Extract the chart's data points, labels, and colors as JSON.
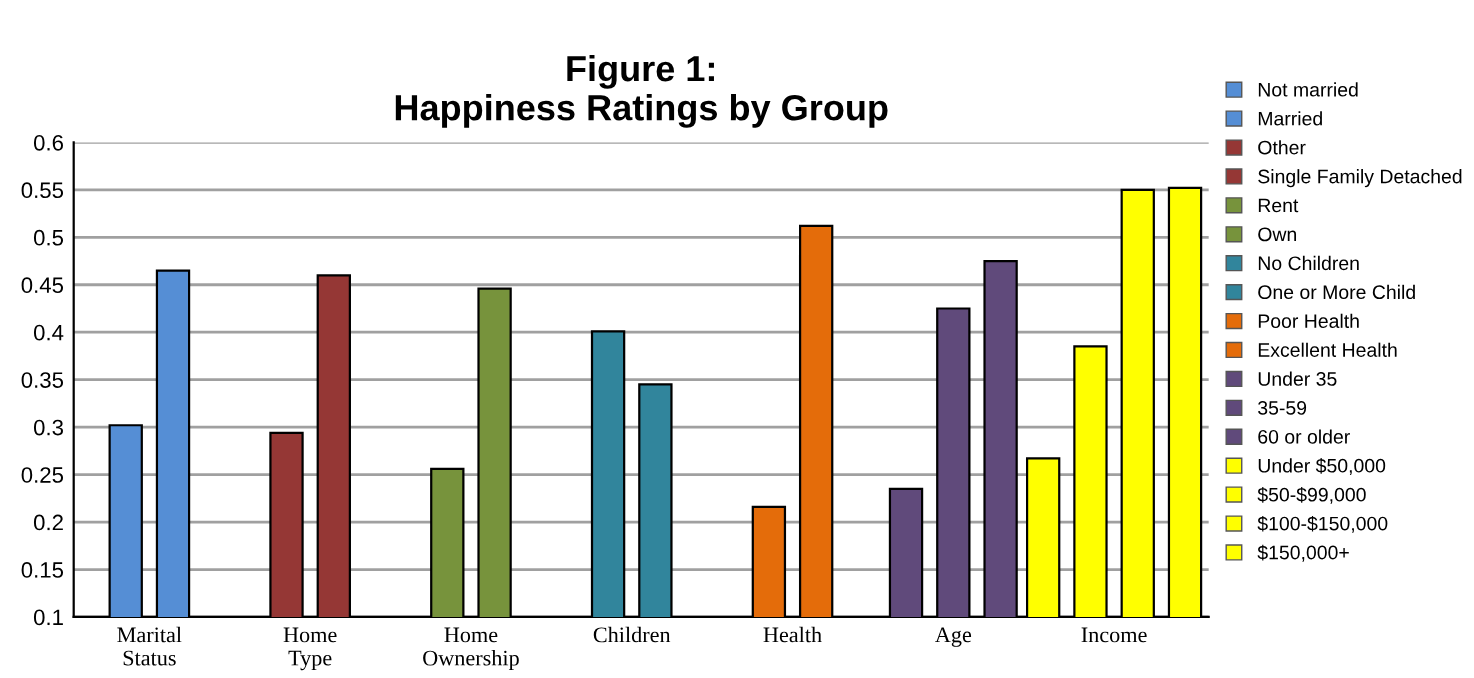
{
  "chart_data": {
    "type": "bar",
    "title": "Figure 1:\nHappiness Ratings by Group",
    "categories": [
      "Marital\nStatus",
      "Home\nType",
      "Home\nOwnership",
      "Children",
      "Health",
      "Age",
      "Income"
    ],
    "series": [
      {
        "name": "Not married",
        "color": "#558ed5",
        "values": [
          0.302,
          null,
          null,
          null,
          null,
          null,
          null
        ]
      },
      {
        "name": "Married",
        "color": "#558ed5",
        "values": [
          0.465,
          null,
          null,
          null,
          null,
          null,
          null
        ]
      },
      {
        "name": "Other",
        "color": "#953735",
        "values": [
          null,
          0.294,
          null,
          null,
          null,
          null,
          null
        ]
      },
      {
        "name": "Single Family Detached",
        "color": "#953735",
        "values": [
          null,
          0.46,
          null,
          null,
          null,
          null,
          null
        ]
      },
      {
        "name": "Rent",
        "color": "#77933c",
        "values": [
          null,
          null,
          0.256,
          null,
          null,
          null,
          null
        ]
      },
      {
        "name": "Own",
        "color": "#77933c",
        "values": [
          null,
          null,
          0.446,
          null,
          null,
          null,
          null
        ]
      },
      {
        "name": "No Children",
        "color": "#31859c",
        "values": [
          null,
          null,
          null,
          0.401,
          null,
          null,
          null
        ]
      },
      {
        "name": "One or More Child",
        "color": "#31859c",
        "values": [
          null,
          null,
          null,
          0.345,
          null,
          null,
          null
        ]
      },
      {
        "name": "Poor Health",
        "color": "#e46c0a",
        "values": [
          null,
          null,
          null,
          null,
          0.216,
          null,
          null
        ]
      },
      {
        "name": "Excellent Health",
        "color": "#e46c0a",
        "values": [
          null,
          null,
          null,
          null,
          0.512,
          null,
          null
        ]
      },
      {
        "name": "Under 35",
        "color": "#604a7b",
        "values": [
          null,
          null,
          null,
          null,
          null,
          0.235,
          null
        ]
      },
      {
        "name": "35-59",
        "color": "#604a7b",
        "values": [
          null,
          null,
          null,
          null,
          null,
          0.425,
          null
        ]
      },
      {
        "name": "60 or older",
        "color": "#604a7b",
        "values": [
          null,
          null,
          null,
          null,
          null,
          0.475,
          null
        ]
      },
      {
        "name": "Under $50,000",
        "color": "#ffff00",
        "values": [
          null,
          null,
          null,
          null,
          null,
          null,
          0.267
        ]
      },
      {
        "name": "$50-$99,000",
        "color": "#ffff00",
        "values": [
          null,
          null,
          null,
          null,
          null,
          null,
          0.385
        ]
      },
      {
        "name": "$100-$150,000",
        "color": "#ffff00",
        "values": [
          null,
          null,
          null,
          null,
          null,
          null,
          0.55
        ]
      },
      {
        "name": "$150,000+",
        "color": "#ffff00",
        "values": [
          null,
          null,
          null,
          null,
          null,
          null,
          0.552
        ]
      }
    ],
    "ylim": [
      0.1,
      0.6
    ],
    "yticks": [
      0.1,
      0.15,
      0.2,
      0.25,
      0.3,
      0.35,
      0.4,
      0.45,
      0.5,
      0.55,
      0.6
    ],
    "grid": "y",
    "legend": "right"
  }
}
